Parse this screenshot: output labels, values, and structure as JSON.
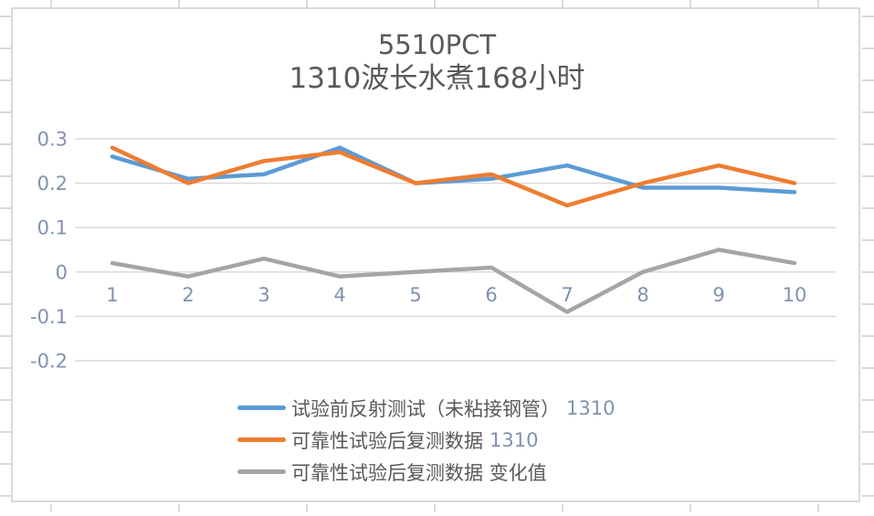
{
  "chart_data": {
    "type": "line",
    "title": "5510PCT",
    "subtitle": "1310波长水煮168小时",
    "categories": [
      "1",
      "2",
      "3",
      "4",
      "5",
      "6",
      "7",
      "8",
      "9",
      "10"
    ],
    "series": [
      {
        "name": "试验前反射测试（未粘接钢管）",
        "name_suffix": "1310",
        "color": "#5B9BD5",
        "values": [
          0.26,
          0.21,
          0.22,
          0.28,
          0.2,
          0.21,
          0.24,
          0.19,
          0.19,
          0.18
        ]
      },
      {
        "name": "可靠性试验后复测数据",
        "name_suffix": "1310",
        "color": "#ED7D31",
        "values": [
          0.28,
          0.2,
          0.25,
          0.27,
          0.2,
          0.22,
          0.15,
          0.2,
          0.24,
          0.2
        ]
      },
      {
        "name": "可靠性试验后复测数据 变化值",
        "name_suffix": "",
        "color": "#A5A5A5",
        "values": [
          0.02,
          -0.01,
          0.03,
          -0.01,
          0.0,
          0.01,
          -0.09,
          0.0,
          0.05,
          0.02
        ]
      }
    ],
    "y_axis": {
      "tick_labels": [
        "0.3",
        "0.2",
        "0.1",
        "0",
        "-0.1",
        "-0.2"
      ],
      "tick_values": [
        0.3,
        0.2,
        0.1,
        0,
        -0.1,
        -0.2
      ],
      "min": -0.2,
      "max": 0.3
    },
    "xlabel": "",
    "ylabel": "",
    "grid": true,
    "legend_position": "bottom"
  },
  "colors": {
    "chinese_text": "#595959",
    "numeral_text": "#8191B0",
    "gridline": "#d9d9d9",
    "frame_border": "#d9d9d9"
  }
}
